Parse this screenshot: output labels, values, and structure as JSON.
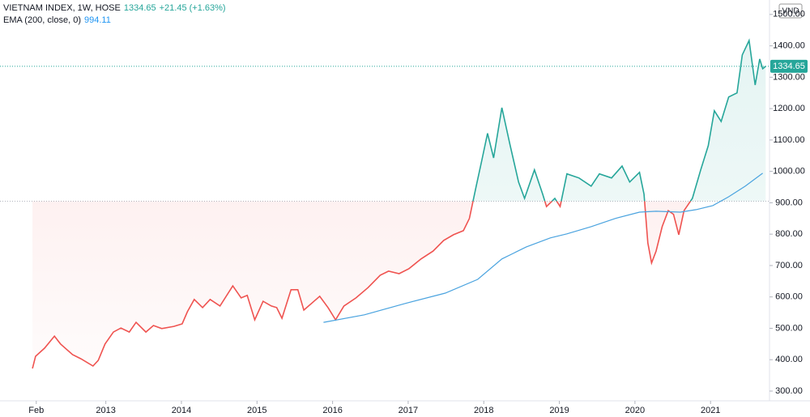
{
  "chart_data": {
    "type": "baseline",
    "currency": "VND",
    "change_label": "+21.45 (+1.63%)",
    "baseline": 905,
    "colors": {
      "up": "#26a69a",
      "down": "#ef5350"
    },
    "xlim": [
      2011.6,
      2021.78
    ],
    "xticks": [
      {
        "value": 2012.08,
        "label": "Feb"
      },
      2013,
      2014,
      2015,
      2016,
      2017,
      2018,
      2019,
      2020,
      2021
    ],
    "ylim": [
      269,
      1546
    ],
    "yticks": [
      {
        "value": 300,
        "label": "300.00"
      },
      {
        "value": 400,
        "label": "400.00"
      },
      {
        "value": 500,
        "label": "500.00"
      },
      {
        "value": 600,
        "label": "600.00"
      },
      {
        "value": 700,
        "label": "700.00"
      },
      {
        "value": 800,
        "label": "800.00"
      },
      {
        "value": 900,
        "label": "900.00"
      },
      {
        "value": 1000,
        "label": "1000.00"
      },
      {
        "value": 1100,
        "label": "1100.00"
      },
      {
        "value": 1200,
        "label": "1200.00"
      },
      {
        "value": 1300,
        "label": "1300.00"
      },
      {
        "value": 1400,
        "label": "1400.00"
      },
      {
        "value": 1500,
        "label": "1500.00"
      }
    ],
    "series": [
      {
        "name": "VIETNAM INDEX, 1W, HOSE",
        "x": [
          2012.03,
          2012.07,
          2012.19,
          2012.32,
          2012.4,
          2012.56,
          2012.67,
          2012.83,
          2012.9,
          2012.99,
          2013.1,
          2013.2,
          2013.31,
          2013.4,
          2013.53,
          2013.63,
          2013.74,
          2013.9,
          2014.01,
          2014.08,
          2014.17,
          2014.28,
          2014.38,
          2014.51,
          2014.68,
          2014.79,
          2014.87,
          2014.97,
          2015.08,
          2015.19,
          2015.26,
          2015.33,
          2015.45,
          2015.54,
          2015.62,
          2015.72,
          2015.83,
          2015.94,
          2016.04,
          2016.15,
          2016.31,
          2016.47,
          2016.63,
          2016.74,
          2016.88,
          2017.01,
          2017.17,
          2017.33,
          2017.47,
          2017.6,
          2017.73,
          2017.81,
          2017.9,
          2017.97,
          2018.05,
          2018.13,
          2018.24,
          2018.35,
          2018.46,
          2018.54,
          2018.67,
          2018.78,
          2018.83,
          2018.94,
          2019.01,
          2019.1,
          2019.26,
          2019.42,
          2019.53,
          2019.69,
          2019.83,
          2019.93,
          2020.06,
          2020.12,
          2020.17,
          2020.22,
          2020.28,
          2020.36,
          2020.44,
          2020.51,
          2020.58,
          2020.65,
          2020.76,
          2020.87,
          2020.97,
          2021.05,
          2021.14,
          2021.24,
          2021.35,
          2021.42,
          2021.51,
          2021.59,
          2021.65,
          2021.69,
          2021.73
        ],
        "values": [
          372,
          411,
          437,
          475,
          450,
          416,
          403,
          380,
          398,
          450,
          488,
          501,
          488,
          519,
          488,
          509,
          499,
          506,
          514,
          553,
          592,
          566,
          592,
          571,
          635,
          597,
          605,
          527,
          586,
          571,
          566,
          532,
          623,
          623,
          558,
          579,
          602,
          566,
          527,
          571,
          597,
          630,
          669,
          682,
          674,
          690,
          721,
          746,
          780,
          798,
          811,
          850,
          953,
          1030,
          1121,
          1043,
          1203,
          1082,
          966,
          914,
          1005,
          927,
          888,
          914,
          888,
          992,
          979,
          953,
          992,
          979,
          1017,
          966,
          997,
          927,
          772,
          708,
          746,
          824,
          875,
          863,
          798,
          875,
          914,
          1005,
          1082,
          1193,
          1159,
          1237,
          1250,
          1371,
          1417,
          1275,
          1358,
          1327,
          1334.65
        ]
      },
      {
        "name": "EMA (200, close, 0)",
        "color": "#4aa3df",
        "x": [
          2015.88,
          2016.42,
          2016.96,
          2017.49,
          2017.92,
          2018.24,
          2018.56,
          2018.88,
          2019.1,
          2019.42,
          2019.74,
          2020.06,
          2020.28,
          2020.6,
          2020.81,
          2021.03,
          2021.24,
          2021.46,
          2021.69
        ],
        "values": [
          519,
          543,
          579,
          612,
          656,
          721,
          759,
          788,
          801,
          824,
          850,
          870,
          873,
          870,
          878,
          891,
          919,
          953,
          994.11
        ]
      }
    ]
  }
}
